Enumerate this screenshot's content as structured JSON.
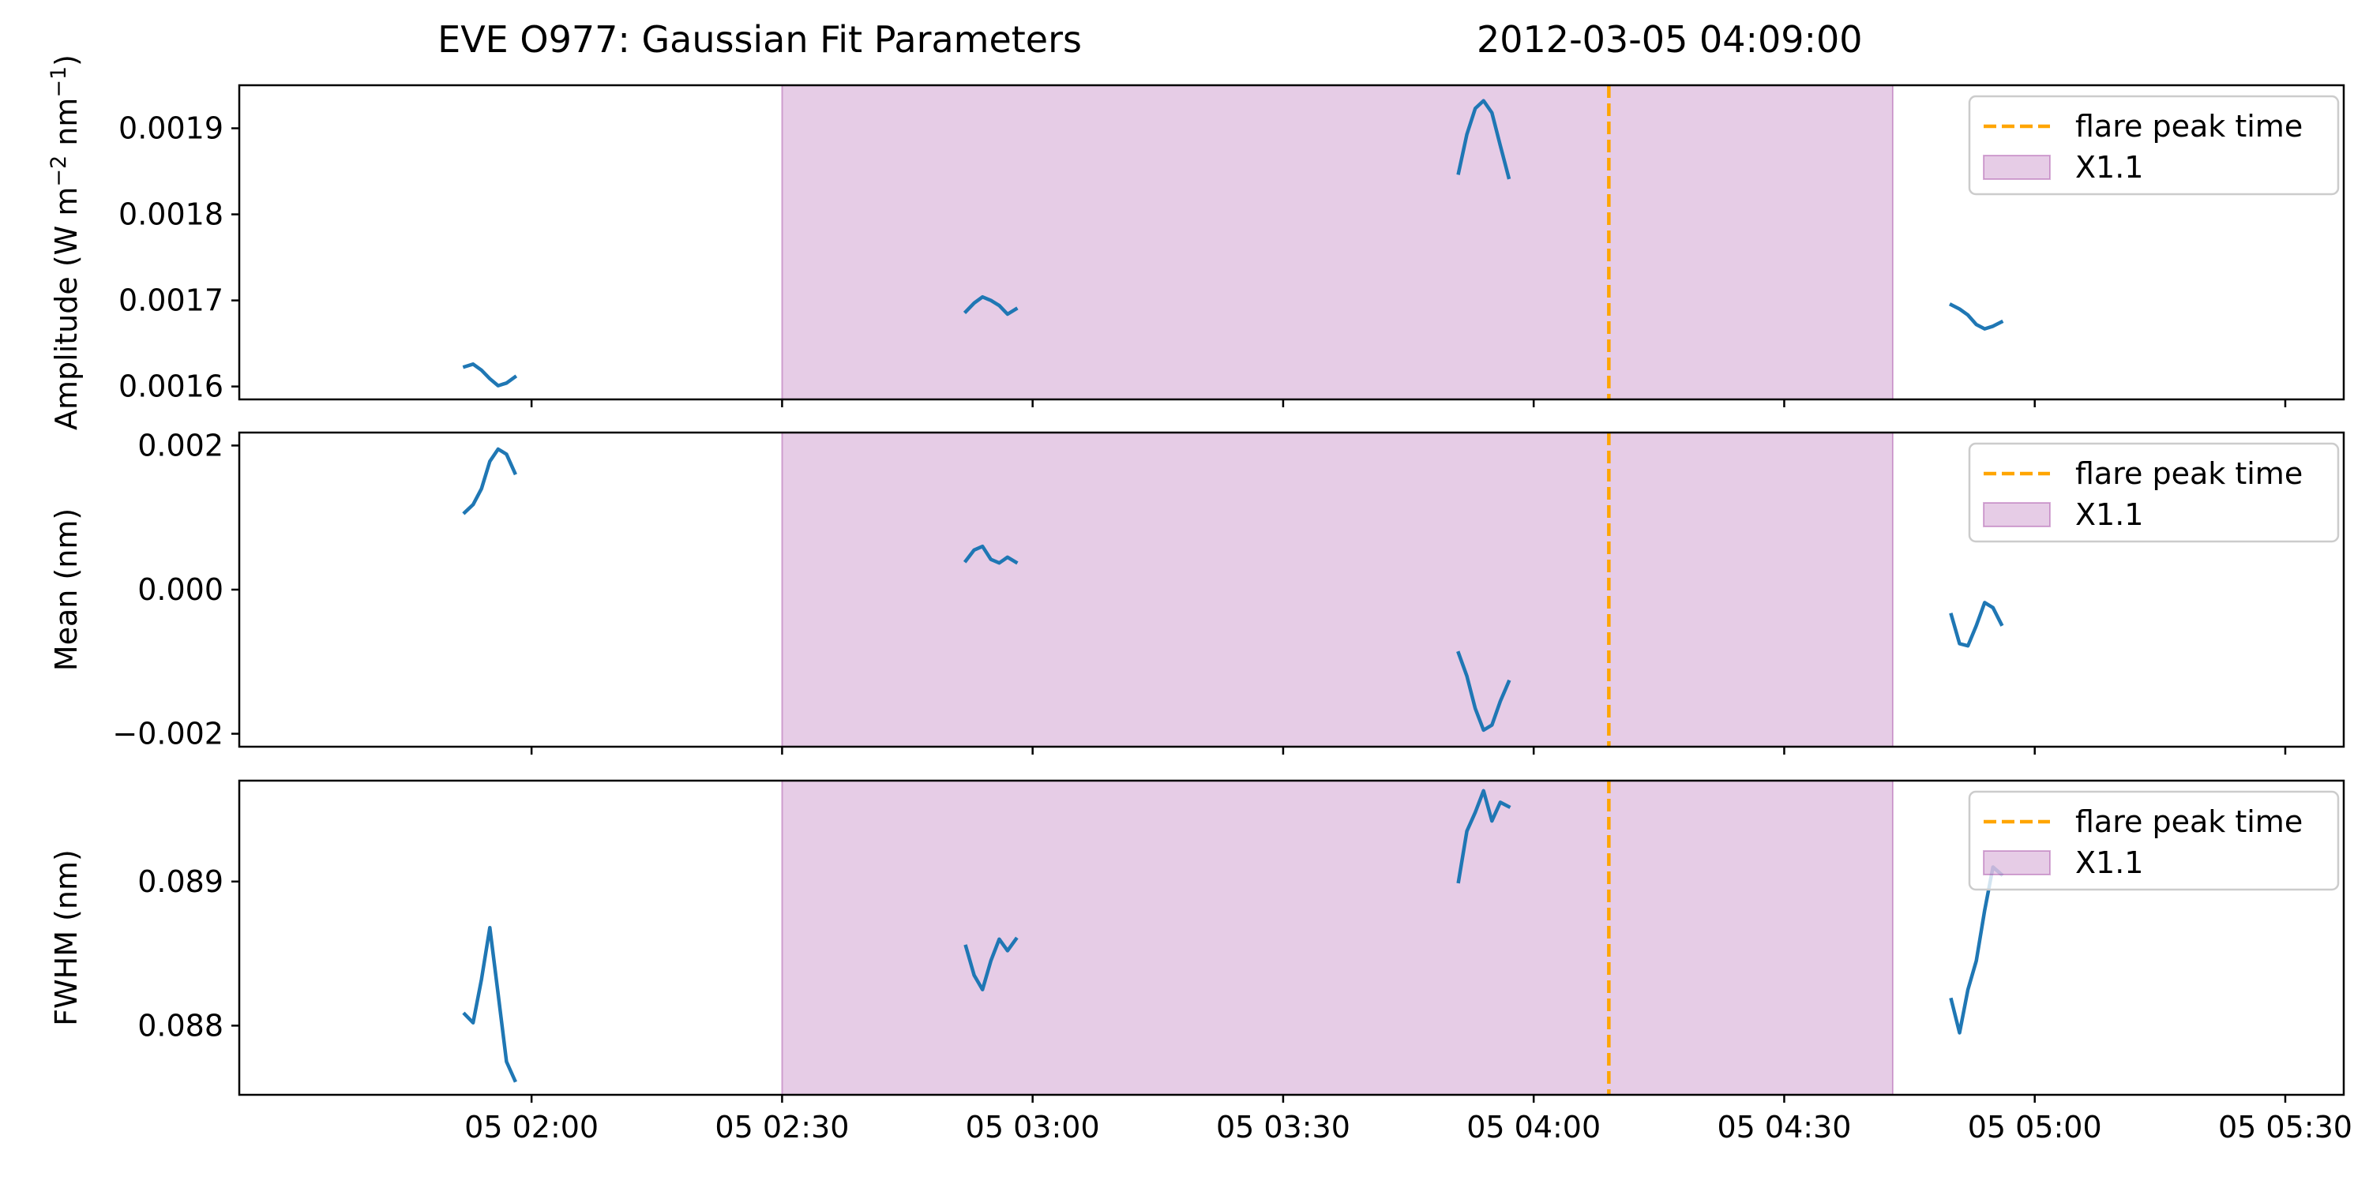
{
  "figure": {
    "title_left": "EVE O977: Gaussian Fit Parameters",
    "title_right": "2012-03-05 04:09:00"
  },
  "colors": {
    "series": "#1f77b4",
    "flare_line": "#ffa500",
    "flare_band": "#800080"
  },
  "chart_data": [
    {
      "type": "line",
      "ylabel_parts": [
        "Amplitude (W m",
        "−2",
        " nm",
        "−1",
        ")"
      ],
      "ylim": [
        0.001585,
        0.00195
      ],
      "yticks": [
        0.0016,
        0.0017,
        0.0018,
        0.0019
      ],
      "ytick_labels": [
        "0.0016",
        "0.0017",
        "0.0018",
        "0.0019"
      ],
      "legend": {
        "location": "upper right",
        "entries": [
          "flare peak time",
          "X1.1"
        ]
      },
      "segments": [
        {
          "x": [
            "05 01:52",
            "05 01:53",
            "05 01:54",
            "05 01:55",
            "05 01:56",
            "05 01:57",
            "05 01:58"
          ],
          "y": [
            0.001623,
            0.001626,
            0.001619,
            0.001609,
            0.001601,
            0.001604,
            0.001611
          ]
        },
        {
          "x": [
            "05 02:52",
            "05 02:53",
            "05 02:54",
            "05 02:55",
            "05 02:56",
            "05 02:57",
            "05 02:58"
          ],
          "y": [
            0.001687,
            0.001697,
            0.001704,
            0.0017,
            0.001694,
            0.001684,
            0.00169
          ]
        },
        {
          "x": [
            "05 03:51",
            "05 03:52",
            "05 03:53",
            "05 03:54",
            "05 03:55",
            "05 03:56",
            "05 03:57"
          ],
          "y": [
            0.001848,
            0.001893,
            0.001923,
            0.001932,
            0.001918,
            0.00188,
            0.001843
          ]
        },
        {
          "x": [
            "05 04:50",
            "05 04:51",
            "05 04:52",
            "05 04:53",
            "05 04:54",
            "05 04:55",
            "05 04:56"
          ],
          "y": [
            0.001695,
            0.00169,
            0.001683,
            0.001672,
            0.001667,
            0.00167,
            0.001675
          ]
        }
      ]
    },
    {
      "type": "line",
      "ylabel_parts": [
        "Mean (nm)"
      ],
      "ylim": [
        -0.00218,
        0.00218
      ],
      "yticks": [
        -0.002,
        0.0,
        0.002
      ],
      "ytick_labels": [
        "−0.002",
        "0.000",
        "0.002"
      ],
      "legend": {
        "location": "upper right",
        "entries": [
          "flare peak time",
          "X1.1"
        ]
      },
      "segments": [
        {
          "x": [
            "05 01:52",
            "05 01:53",
            "05 01:54",
            "05 01:55",
            "05 01:56",
            "05 01:57",
            "05 01:58"
          ],
          "y": [
            0.00107,
            0.00118,
            0.0014,
            0.00178,
            0.00195,
            0.00188,
            0.00162
          ]
        },
        {
          "x": [
            "05 02:52",
            "05 02:53",
            "05 02:54",
            "05 02:55",
            "05 02:56",
            "05 02:57",
            "05 02:58"
          ],
          "y": [
            0.0004,
            0.00055,
            0.0006,
            0.00042,
            0.00037,
            0.00045,
            0.00038
          ]
        },
        {
          "x": [
            "05 03:51",
            "05 03:52",
            "05 03:53",
            "05 03:54",
            "05 03:55",
            "05 03:56",
            "05 03:57"
          ],
          "y": [
            -0.00088,
            -0.0012,
            -0.00165,
            -0.00195,
            -0.00188,
            -0.00155,
            -0.00128
          ]
        },
        {
          "x": [
            "05 04:50",
            "05 04:51",
            "05 04:52",
            "05 04:53",
            "05 04:54",
            "05 04:55",
            "05 04:56"
          ],
          "y": [
            -0.00035,
            -0.00075,
            -0.00078,
            -0.0005,
            -0.00018,
            -0.00025,
            -0.00048
          ]
        }
      ]
    },
    {
      "type": "line",
      "ylabel_parts": [
        "FWHM (nm)"
      ],
      "xlabel": "",
      "ylim": [
        0.08752,
        0.0897
      ],
      "yticks": [
        0.088,
        0.089
      ],
      "ytick_labels": [
        "0.088",
        "0.089"
      ],
      "legend": {
        "location": "upper right",
        "entries": [
          "flare peak time",
          "X1.1"
        ]
      },
      "segments": [
        {
          "x": [
            "05 01:52",
            "05 01:53",
            "05 01:54",
            "05 01:55",
            "05 01:56",
            "05 01:57",
            "05 01:58"
          ],
          "y": [
            0.08808,
            0.08802,
            0.08832,
            0.08868,
            0.08822,
            0.08775,
            0.08762
          ]
        },
        {
          "x": [
            "05 02:52",
            "05 02:53",
            "05 02:54",
            "05 02:55",
            "05 02:56",
            "05 02:57",
            "05 02:58"
          ],
          "y": [
            0.08855,
            0.08835,
            0.08825,
            0.08845,
            0.0886,
            0.08852,
            0.0886
          ]
        },
        {
          "x": [
            "05 03:51",
            "05 03:52",
            "05 03:53",
            "05 03:54",
            "05 03:55",
            "05 03:56",
            "05 03:57"
          ],
          "y": [
            0.089,
            0.08935,
            0.08948,
            0.08963,
            0.08942,
            0.08955,
            0.08952
          ]
        },
        {
          "x": [
            "05 04:50",
            "05 04:51",
            "05 04:52",
            "05 04:53",
            "05 04:54",
            "05 04:55",
            "05 04:56"
          ],
          "y": [
            0.08818,
            0.08795,
            0.08825,
            0.08845,
            0.0888,
            0.0891,
            0.08905
          ]
        }
      ]
    }
  ],
  "shared_x": {
    "type": "time",
    "xlim": [
      "05 01:25",
      "05 05:37"
    ],
    "xticks": [
      "05 02:00",
      "05 02:30",
      "05 03:00",
      "05 03:30",
      "05 04:00",
      "05 04:30",
      "05 05:00",
      "05 05:30"
    ],
    "flare_peak_time": "05 04:09",
    "flare_band": {
      "label": "X1.1",
      "start": "05 02:30",
      "end": "05 04:43"
    },
    "flare_line_label": "flare peak time"
  }
}
